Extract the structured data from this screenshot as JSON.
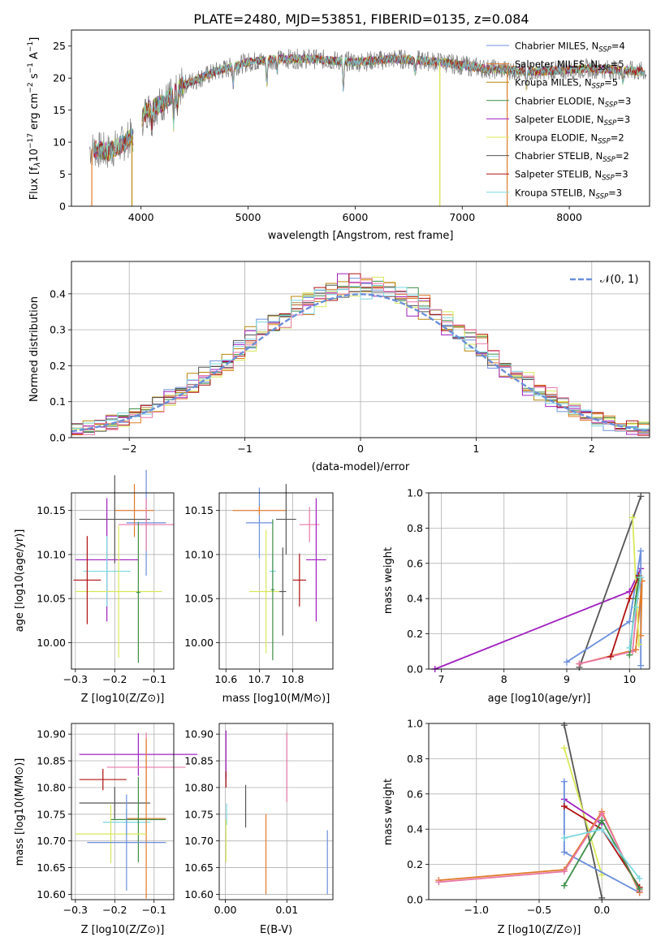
{
  "title": "PLATE=2480, MJD=53851, FIBERID=0135, z=0.084",
  "colors": {
    "chabrier_miles": "#6b8fdc",
    "salpeter_miles": "#e07b2a",
    "kroupa_miles": "#b8860b",
    "chabrier_elodie": "#3e8e48",
    "salpeter_elodie": "#a020c0",
    "kroupa_elodie": "#d8e85a",
    "chabrier_stelib": "#555555",
    "salpeter_stelib": "#b01010",
    "kroupa_stelib": "#7ad8e0",
    "pink": "#e878a8"
  },
  "chart_data": [
    {
      "id": "spectrum",
      "type": "line",
      "xlabel": "wavelength [Angstrom, rest frame]",
      "ylabel": "Flux [f_λ10^-17 erg cm^-2 s^-1 A^-1]",
      "xlim": [
        3350,
        8750
      ],
      "ylim": [
        0,
        27.5
      ],
      "xticks": [
        "4000",
        "5000",
        "6000",
        "7000",
        "8000"
      ],
      "yticks": [
        "0",
        "5",
        "10",
        "15",
        "20",
        "25"
      ],
      "grid": false,
      "legend": "right",
      "legend_entries": [
        {
          "label": "Chabrier MILES, N",
          "sub": "SSP",
          "rest": "=4"
        },
        {
          "label": "Salpeter MILES, N",
          "sub": "SSP",
          "rest": "=5"
        },
        {
          "label": "Kroupa MILES, N",
          "sub": "SSP",
          "rest": "=5"
        },
        {
          "label": "Chabrier ELODIE, N",
          "sub": "SSP",
          "rest": "=3"
        },
        {
          "label": "Salpeter ELODIE, N",
          "sub": "SSP",
          "rest": "=3"
        },
        {
          "label": "Kroupa ELODIE, N",
          "sub": "SSP",
          "rest": "=2"
        },
        {
          "label": "Chabrier STELIB, N",
          "sub": "SSP",
          "rest": "=2"
        },
        {
          "label": "Salpeter STELIB, N",
          "sub": "SSP",
          "rest": "=3"
        },
        {
          "label": "Kroupa STELIB, N",
          "sub": "SSP",
          "rest": "=3"
        }
      ],
      "continuum": [
        [
          3520,
          9
        ],
        [
          3700,
          8.5
        ],
        [
          3850,
          10
        ],
        [
          3950,
          11.5
        ],
        [
          4050,
          15
        ],
        [
          4200,
          16
        ],
        [
          4400,
          19
        ],
        [
          4700,
          21
        ],
        [
          5000,
          22.5
        ],
        [
          5300,
          23
        ],
        [
          5600,
          23
        ],
        [
          6000,
          22.5
        ],
        [
          6400,
          23
        ],
        [
          6800,
          22.5
        ],
        [
          7200,
          21.5
        ],
        [
          7700,
          21
        ],
        [
          8200,
          21.5
        ],
        [
          8720,
          21
        ]
      ],
      "absorption_lines": [
        [
          3934,
          4
        ],
        [
          3969,
          4
        ],
        [
          4102,
          3
        ],
        [
          4304,
          5
        ],
        [
          4340,
          3
        ],
        [
          4861,
          3
        ],
        [
          5175,
          4
        ],
        [
          5270,
          2
        ],
        [
          5890,
          5
        ],
        [
          6563,
          2
        ],
        [
          7600,
          3
        ],
        [
          8500,
          2
        ]
      ],
      "model_line_drops": [
        {
          "x": 3540,
          "series": "salpeter_miles"
        },
        {
          "x": 3915,
          "series": "kroupa_miles"
        },
        {
          "x": 6790,
          "series": "kroupa_miles"
        },
        {
          "x": 6790,
          "series": "kroupa_elodie"
        },
        {
          "x": 7420,
          "series": "salpeter_miles"
        }
      ]
    },
    {
      "id": "residuals",
      "type": "step",
      "xlabel": "(data-model)/error",
      "ylabel": "Normed distribution",
      "xlim": [
        -2.5,
        2.5
      ],
      "ylim": [
        0,
        0.49
      ],
      "xticks": [
        "−2",
        "−1",
        "0",
        "1",
        "2"
      ],
      "yticks": [
        "0.0",
        "0.1",
        "0.2",
        "0.3",
        "0.4"
      ],
      "grid": true,
      "legend": "top-right",
      "legend_label": "𝒩(0, 1)",
      "bin_width": 0.1
    },
    {
      "id": "age_vs_Z",
      "type": "scatter",
      "xlabel": "Z [log10(Z/Z⊙)]",
      "ylabel": "age [log10(age/yr)]",
      "xlim": [
        -0.31,
        -0.05
      ],
      "ylim": [
        9.97,
        10.17
      ],
      "xticks": [
        {
          "v": -0.3,
          "t": "−0.3"
        },
        {
          "v": -0.2,
          "t": "−0.2"
        },
        {
          "v": -0.1,
          "t": "−0.1"
        }
      ],
      "yticks": [
        {
          "v": 10.0,
          "t": "10.00"
        },
        {
          "v": 10.05,
          "t": "10.05"
        },
        {
          "v": 10.1,
          "t": "10.10"
        },
        {
          "v": 10.15,
          "t": "10.15"
        }
      ],
      "grid": true,
      "points": [
        {
          "c": "chabrier_miles",
          "x": -0.12,
          "y": 10.136,
          "xe": 0.05,
          "ye": 0.06
        },
        {
          "c": "salpeter_miles",
          "x": -0.15,
          "y": 10.15,
          "xe": 0.05,
          "ye": 0.03
        },
        {
          "c": "chabrier_stelib",
          "x": -0.2,
          "y": 10.14,
          "xe": 0.09,
          "ye": 0.05
        },
        {
          "c": "pink",
          "x": -0.12,
          "y": 10.134,
          "xe": 0.07,
          "ye": 0.03
        },
        {
          "c": "salpeter_elodie",
          "x": -0.22,
          "y": 10.094,
          "xe": 0.08,
          "ye": 0.07
        },
        {
          "c": "kroupa_stelib",
          "x": -0.22,
          "y": 10.081,
          "xe": 0.06,
          "ye": 0.04
        },
        {
          "c": "kroupa_elodie",
          "x": -0.19,
          "y": 10.058,
          "xe": 0.11,
          "ye": 0.075
        },
        {
          "c": "salpeter_stelib",
          "x": -0.27,
          "y": 10.071,
          "xe": 0.035,
          "ye": 0.05
        },
        {
          "c": "chabrier_elodie",
          "x": -0.14,
          "y": 10.057,
          "xe": 0.005,
          "ye": 0.08
        }
      ]
    },
    {
      "id": "age_vs_mass",
      "type": "scatter",
      "xlabel": "mass [log10(M/M⊙)]",
      "ylabel": "",
      "xlim": [
        10.58,
        10.92
      ],
      "ylim": [
        9.97,
        10.17
      ],
      "xticks": [
        {
          "v": 10.6,
          "t": "10.6"
        },
        {
          "v": 10.7,
          "t": "10.7"
        },
        {
          "v": 10.8,
          "t": "10.8"
        }
      ],
      "yticks": [
        {
          "v": 10.0,
          "t": "10.00"
        },
        {
          "v": 10.05,
          "t": "10.05"
        },
        {
          "v": 10.1,
          "t": "10.10"
        },
        {
          "v": 10.15,
          "t": "10.15"
        }
      ],
      "grid": true,
      "points": [
        {
          "c": "chabrier_miles",
          "x": 10.7,
          "y": 10.136,
          "xe": 0.04,
          "ye": 0.04
        },
        {
          "c": "salpeter_miles",
          "x": 10.7,
          "y": 10.15,
          "xe": 0.08,
          "ye": 0.005
        },
        {
          "c": "chabrier_stelib",
          "x": 10.78,
          "y": 10.14,
          "xe": 0.03,
          "ye": 0.04
        },
        {
          "c": "pink",
          "x": 10.85,
          "y": 10.134,
          "xe": 0.03,
          "ye": 0.02
        },
        {
          "c": "salpeter_elodie",
          "x": 10.87,
          "y": 10.094,
          "xe": 0.03,
          "ye": 0.07
        },
        {
          "c": "kroupa_stelib",
          "x": 10.74,
          "y": 10.081,
          "xe": 0.01,
          "ye": 0.02
        },
        {
          "c": "kroupa_elodie",
          "x": 10.72,
          "y": 10.058,
          "xe": 0.05,
          "ye": 0.07
        },
        {
          "c": "salpeter_stelib",
          "x": 10.82,
          "y": 10.071,
          "xe": 0.02,
          "ye": 0.03
        },
        {
          "c": "chabrier_stelib",
          "x": 10.77,
          "y": 10.058,
          "xe": 0.01,
          "ye": 0.05
        },
        {
          "c": "chabrier_elodie",
          "x": 10.74,
          "y": 10.06,
          "xe": 0.005,
          "ye": 0.08
        }
      ]
    },
    {
      "id": "weight_vs_age",
      "type": "line",
      "xlabel": "age [log10(age/yr)]",
      "ylabel": "mass weight",
      "xlim": [
        6.8,
        10.32
      ],
      "ylim": [
        0,
        1.0
      ],
      "xticks": [
        {
          "v": 7,
          "t": "7"
        },
        {
          "v": 8,
          "t": "8"
        },
        {
          "v": 9,
          "t": "9"
        },
        {
          "v": 10,
          "t": "10"
        }
      ],
      "yticks": [
        {
          "v": 0,
          "t": "0.0"
        },
        {
          "v": 0.2,
          "t": "0.2"
        },
        {
          "v": 0.4,
          "t": "0.4"
        },
        {
          "v": 0.6,
          "t": "0.6"
        },
        {
          "v": 0.8,
          "t": "0.8"
        },
        {
          "v": 1.0,
          "t": "1.0"
        }
      ],
      "grid": true,
      "series": [
        {
          "c": "salpeter_elodie",
          "points": [
            [
              6.9,
              0.0
            ],
            [
              10.0,
              0.44
            ],
            [
              10.18,
              0.57
            ]
          ]
        },
        {
          "c": "chabrier_stelib",
          "points": [
            [
              9.2,
              0.01
            ],
            [
              10.18,
              0.98
            ]
          ]
        },
        {
          "c": "chabrier_miles",
          "points": [
            [
              9.0,
              0.04
            ],
            [
              10.0,
              0.27
            ],
            [
              10.18,
              0.67
            ],
            [
              10.18,
              0.02
            ]
          ]
        },
        {
          "c": "salpeter_miles",
          "points": [
            [
              9.2,
              0.03
            ],
            [
              10.1,
              0.11
            ],
            [
              10.2,
              0.5
            ],
            [
              10.18,
              0.19
            ]
          ]
        },
        {
          "c": "pink",
          "points": [
            [
              9.2,
              0.03
            ],
            [
              10.05,
              0.1
            ],
            [
              10.15,
              0.49
            ]
          ]
        },
        {
          "c": "kroupa_elodie",
          "points": [
            [
              10.05,
              0.86
            ],
            [
              10.15,
              0.14
            ]
          ]
        },
        {
          "c": "salpeter_stelib",
          "points": [
            [
              9.7,
              0.07
            ],
            [
              10.0,
              0.4
            ],
            [
              10.15,
              0.53
            ]
          ]
        },
        {
          "c": "chabrier_elodie",
          "points": [
            [
              10.0,
              0.08
            ],
            [
              10.1,
              0.4
            ],
            [
              10.15,
              0.52
            ]
          ]
        },
        {
          "c": "kroupa_stelib",
          "points": [
            [
              10.0,
              0.12
            ],
            [
              10.1,
              0.35
            ],
            [
              10.18,
              0.52
            ]
          ]
        }
      ]
    },
    {
      "id": "mass_vs_Z",
      "type": "scatter",
      "xlabel": "Z [log10(Z/Z⊙)]",
      "ylabel": "mass [log10(M/M⊙)]",
      "xlim": [
        -0.31,
        -0.05
      ],
      "ylim": [
        10.59,
        10.92
      ],
      "xticks": [
        {
          "v": -0.3,
          "t": "−0.3"
        },
        {
          "v": -0.2,
          "t": "−0.2"
        },
        {
          "v": -0.1,
          "t": "−0.1"
        }
      ],
      "yticks": [
        {
          "v": 10.6,
          "t": "10.60"
        },
        {
          "v": 10.65,
          "t": "10.65"
        },
        {
          "v": 10.7,
          "t": "10.70"
        },
        {
          "v": 10.75,
          "t": "10.75"
        },
        {
          "v": 10.8,
          "t": "10.80"
        },
        {
          "v": 10.85,
          "t": "10.85"
        },
        {
          "v": 10.9,
          "t": "10.90"
        }
      ],
      "grid": true,
      "points": [
        {
          "c": "salpeter_elodie",
          "x": -0.14,
          "y": 10.862,
          "xe": 0.15,
          "ye": 0.04
        },
        {
          "c": "pink",
          "x": -0.12,
          "y": 10.838,
          "xe": 0.1,
          "ye": 0.065
        },
        {
          "c": "salpeter_stelib",
          "x": -0.23,
          "y": 10.815,
          "xe": 0.06,
          "ye": 0.02
        },
        {
          "c": "chabrier_stelib",
          "x": -0.2,
          "y": 10.771,
          "xe": 0.09,
          "ye": 0.03
        },
        {
          "c": "kroupa_stelib",
          "x": -0.17,
          "y": 10.735,
          "xe": 0.06,
          "ye": 0.025
        },
        {
          "c": "salpeter_miles",
          "x": -0.12,
          "y": 10.742,
          "xe": 0.05,
          "ye": 0.15
        },
        {
          "c": "chabrier_elodie",
          "x": -0.14,
          "y": 10.74,
          "xe": 0.07,
          "ye": 0.08
        },
        {
          "c": "kroupa_elodie",
          "x": -0.21,
          "y": 10.713,
          "xe": 0.09,
          "ye": 0.055
        },
        {
          "c": "chabrier_miles",
          "x": -0.17,
          "y": 10.697,
          "xe": 0.1,
          "ye": 0.09
        }
      ]
    },
    {
      "id": "mass_vs_ebv",
      "type": "scatter",
      "xlabel": "E(B-V)",
      "ylabel": "",
      "xlim": [
        -0.001,
        0.0175
      ],
      "ylim": [
        10.59,
        10.92
      ],
      "xticks": [
        {
          "v": 0,
          "t": "0.00"
        },
        {
          "v": 0.01,
          "t": "0.01"
        }
      ],
      "yticks": [
        {
          "v": 10.6,
          "t": "10.60"
        },
        {
          "v": 10.65,
          "t": "10.65"
        },
        {
          "v": 10.7,
          "t": "10.70"
        },
        {
          "v": 10.75,
          "t": "10.75"
        },
        {
          "v": 10.8,
          "t": "10.80"
        },
        {
          "v": 10.85,
          "t": "10.85"
        },
        {
          "v": 10.9,
          "t": "10.90"
        }
      ],
      "grid": true,
      "points": [
        {
          "c": "salpeter_elodie",
          "x": 0.0001,
          "y": 10.862,
          "xe": 0.0,
          "ye": 0.045
        },
        {
          "c": "pink",
          "x": 0.01,
          "y": 10.838,
          "xe": 0.0,
          "ye": 0.065
        },
        {
          "c": "salpeter_stelib",
          "x": 0.0001,
          "y": 10.815,
          "xe": 0.0,
          "ye": 0.015
        },
        {
          "c": "chabrier_stelib",
          "x": 0.0033,
          "y": 10.765,
          "xe": 0.0,
          "ye": 0.04
        },
        {
          "c": "kroupa_stelib",
          "x": 0.0002,
          "y": 10.75,
          "xe": 0.0,
          "ye": 0.02
        },
        {
          "c": "salpeter_miles",
          "x": 0.0066,
          "y": 10.675,
          "xe": 0.0,
          "ye": 0.075
        },
        {
          "c": "kroupa_elodie",
          "x": 0.0001,
          "y": 10.7,
          "xe": 0.0,
          "ye": 0.04
        },
        {
          "c": "chabrier_miles",
          "x": 0.0166,
          "y": 10.66,
          "xe": 0.0,
          "ye": 0.06
        }
      ]
    },
    {
      "id": "weight_vs_Z",
      "type": "line",
      "xlabel": "Z [log10(Z/Z⊙)]",
      "ylabel": "mass weight",
      "xlim": [
        -1.38,
        0.38
      ],
      "ylim": [
        0,
        1.0
      ],
      "xticks": [
        {
          "v": -1.0,
          "t": "−1.0"
        },
        {
          "v": -0.5,
          "t": "−0.5"
        },
        {
          "v": 0.0,
          "t": "0.0"
        }
      ],
      "yticks": [
        {
          "v": 0,
          "t": "0.0"
        },
        {
          "v": 0.2,
          "t": "0.2"
        },
        {
          "v": 0.4,
          "t": "0.4"
        },
        {
          "v": 0.6,
          "t": "0.6"
        },
        {
          "v": 0.8,
          "t": "0.8"
        },
        {
          "v": 1.0,
          "t": "1.0"
        }
      ],
      "grid": true,
      "series": [
        {
          "c": "chabrier_stelib",
          "points": [
            [
              -0.3,
              0.99
            ],
            [
              0.0,
              0.01
            ]
          ]
        },
        {
          "c": "kroupa_elodie",
          "points": [
            [
              -0.3,
              0.86
            ],
            [
              0.0,
              0.14
            ]
          ]
        },
        {
          "c": "salpeter_elodie",
          "points": [
            [
              -0.3,
              0.57
            ],
            [
              0.0,
              0.43
            ]
          ]
        },
        {
          "c": "chabrier_miles",
          "points": [
            [
              -0.3,
              0.67
            ],
            [
              -0.3,
              0.27
            ],
            [
              0.3,
              0.04
            ]
          ]
        },
        {
          "c": "salpeter_stelib",
          "points": [
            [
              -0.3,
              0.53
            ],
            [
              0.0,
              0.4
            ],
            [
              0.3,
              0.07
            ]
          ]
        },
        {
          "c": "salpeter_miles",
          "points": [
            [
              -1.3,
              0.11
            ],
            [
              -0.3,
              0.17
            ],
            [
              0.0,
              0.5
            ],
            [
              0.3,
              0.04
            ]
          ]
        },
        {
          "c": "pink",
          "points": [
            [
              -1.3,
              0.1
            ],
            [
              -0.3,
              0.16
            ],
            [
              0.0,
              0.49
            ],
            [
              0.3,
              0.05
            ]
          ]
        },
        {
          "c": "chabrier_elodie",
          "points": [
            [
              -0.3,
              0.08
            ],
            [
              0.0,
              0.45
            ],
            [
              0.3,
              0.06
            ]
          ]
        },
        {
          "c": "kroupa_stelib",
          "points": [
            [
              -0.3,
              0.35
            ],
            [
              0.0,
              0.4
            ],
            [
              0.3,
              0.12
            ]
          ]
        }
      ]
    }
  ]
}
